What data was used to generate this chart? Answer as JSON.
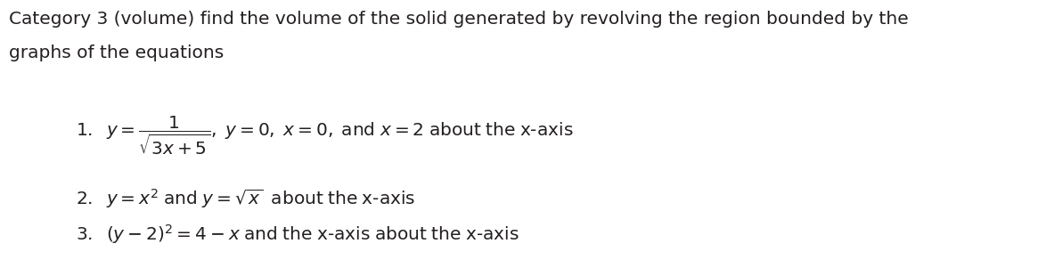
{
  "background_color": "#ffffff",
  "title_line1": "Category 3 (volume) find the volume of the solid generated by revolving the region bounded by the",
  "title_line2": "graphs of the equations",
  "text_color": "#231f20",
  "font_size_title": 14.5,
  "font_size_items": 14.5,
  "fig_width": 11.74,
  "fig_height": 3.1,
  "dpi": 100
}
